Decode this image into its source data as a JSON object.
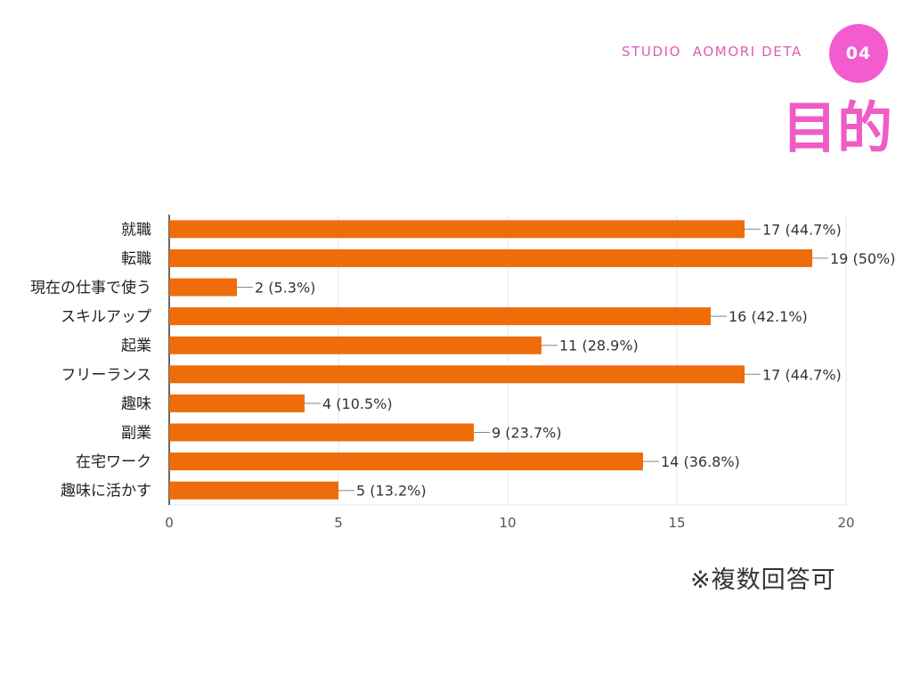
{
  "header": {
    "brand": "STUDIO  AOMORI DETA",
    "page_number": "04",
    "title": "目的"
  },
  "note": "※複数回答可",
  "colors": {
    "bar": "#ee6d0a",
    "accent": "#f25ccf",
    "grid": "#e6e6e6"
  },
  "chart_data": {
    "type": "bar",
    "orientation": "horizontal",
    "categories": [
      "就職",
      "転職",
      "現在の仕事で使う",
      "スキルアップ",
      "起業",
      "フリーランス",
      "趣味",
      "副業",
      "在宅ワーク",
      "趣味に活かす"
    ],
    "values": [
      17,
      19,
      2,
      16,
      11,
      17,
      4,
      9,
      14,
      5
    ],
    "data_labels": [
      "17 (44.7%)",
      "19 (50%)",
      "2 (5.3%)",
      "16 (42.1%)",
      "11 (28.9%)",
      "17 (44.7%)",
      "4 (10.5%)",
      "9 (23.7%)",
      "14 (36.8%)",
      "5 (13.2%)"
    ],
    "xlim": [
      0,
      20
    ],
    "xticks": [
      "0",
      "5",
      "10",
      "15",
      "20"
    ],
    "grid": true,
    "legend": "none",
    "title": "",
    "xlabel": "",
    "ylabel": ""
  }
}
